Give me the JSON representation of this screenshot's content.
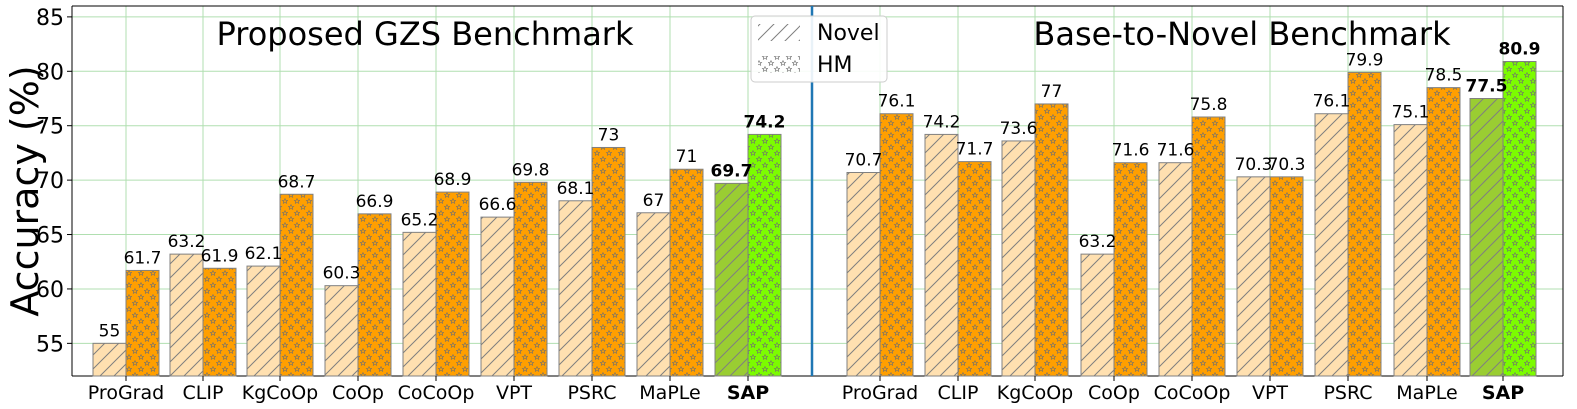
{
  "chart_data": {
    "type": "bar",
    "ylabel": "Accuracy (%)",
    "xlabel": "",
    "ylim": [
      52,
      86
    ],
    "yticks": [
      55,
      60,
      65,
      70,
      75,
      80,
      85
    ],
    "grid": true,
    "legend_placement": "top-center",
    "legend": [
      {
        "name": "Novel",
        "pattern": "diagonal-hatch"
      },
      {
        "name": "HM",
        "pattern": "star-hatch"
      }
    ],
    "panels": [
      {
        "title": "Proposed GZS Benchmark",
        "categories": [
          "ProGrad",
          "CLIP",
          "KgCoOp",
          "CoOp",
          "CoCoOp",
          "VPT",
          "PSRC",
          "MaPLe",
          "SAP"
        ],
        "highlight": "SAP",
        "series": [
          {
            "name": "Novel",
            "values": [
              55,
              63.2,
              62.1,
              60.3,
              65.2,
              66.6,
              68.1,
              67,
              69.7
            ]
          },
          {
            "name": "HM",
            "values": [
              61.7,
              61.9,
              68.7,
              66.9,
              68.9,
              69.8,
              73,
              71,
              74.2
            ]
          }
        ]
      },
      {
        "title": "Base-to-Novel Benchmark",
        "categories": [
          "ProGrad",
          "CLIP",
          "KgCoOp",
          "CoOp",
          "CoCoOp",
          "VPT",
          "PSRC",
          "MaPLe",
          "SAP"
        ],
        "highlight": "SAP",
        "series": [
          {
            "name": "Novel",
            "values": [
              70.7,
              74.2,
              73.6,
              63.2,
              71.6,
              70.3,
              76.1,
              75.1,
              77.5
            ]
          },
          {
            "name": "HM",
            "values": [
              76.1,
              71.7,
              77,
              71.6,
              75.8,
              70.3,
              79.9,
              78.5,
              80.9
            ]
          }
        ]
      }
    ]
  },
  "colors": {
    "novel": "#ffe0b0",
    "hm": "#ff9f00",
    "sap_novel": "#9acd32",
    "sap_hm": "#7cfc00",
    "hatch": "#7f7f7f",
    "grid": "#b0dfb0",
    "divider": "#1f77b4",
    "bar_edge": "#808080"
  }
}
